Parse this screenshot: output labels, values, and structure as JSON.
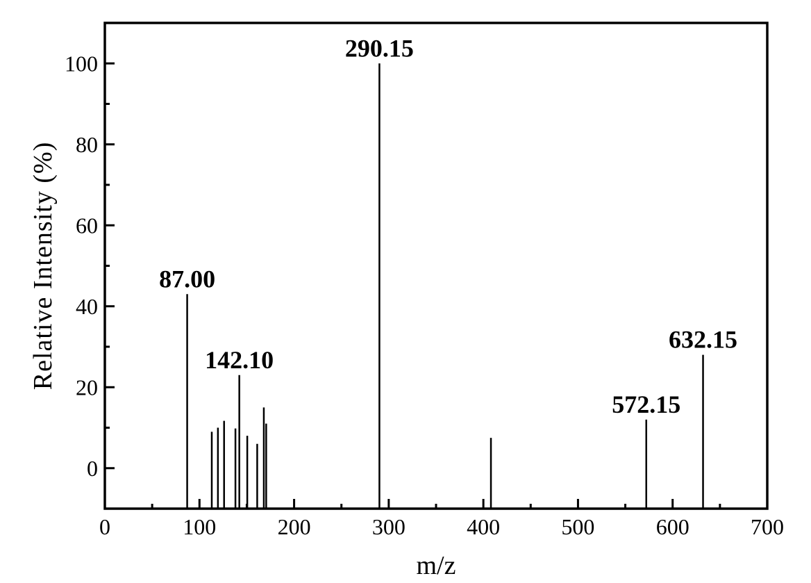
{
  "figure": {
    "background": "#ffffff",
    "ink_color": "#000000"
  },
  "chart_data": {
    "type": "bar",
    "subtype": "mass-spectrum-stick-plot",
    "title": "",
    "xlabel": "m/z",
    "ylabel": "Relative Intensity (%)",
    "xlim": [
      0,
      700
    ],
    "ylim": [
      -10,
      110
    ],
    "bar_baseline": -10,
    "grid": false,
    "legend": false,
    "x_major_ticks": [
      0,
      100,
      200,
      300,
      400,
      500,
      600,
      700
    ],
    "x_minor_ticks": [
      50,
      150,
      250,
      350,
      450,
      550,
      650
    ],
    "y_major_ticks": [
      0,
      20,
      40,
      60,
      80,
      100
    ],
    "y_minor_ticks": [
      10,
      30,
      50,
      70,
      90
    ],
    "peaks": [
      {
        "mz": 87.0,
        "intensity": 43,
        "label": "87.00"
      },
      {
        "mz": 113.0,
        "intensity": 9,
        "label": null
      },
      {
        "mz": 119.5,
        "intensity": 10,
        "label": null
      },
      {
        "mz": 126.0,
        "intensity": 11.7,
        "label": null
      },
      {
        "mz": 138.0,
        "intensity": 9.8,
        "label": null
      },
      {
        "mz": 142.1,
        "intensity": 23,
        "label": "142.10"
      },
      {
        "mz": 150.5,
        "intensity": 8,
        "label": null
      },
      {
        "mz": 161.0,
        "intensity": 6,
        "label": null
      },
      {
        "mz": 168.0,
        "intensity": 15,
        "label": null
      },
      {
        "mz": 170.5,
        "intensity": 11,
        "label": null
      },
      {
        "mz": 290.15,
        "intensity": 100,
        "label": "290.15"
      },
      {
        "mz": 408.0,
        "intensity": 7.5,
        "label": null
      },
      {
        "mz": 572.15,
        "intensity": 12,
        "label": "572.15"
      },
      {
        "mz": 632.15,
        "intensity": 28,
        "label": "632.15"
      }
    ]
  }
}
